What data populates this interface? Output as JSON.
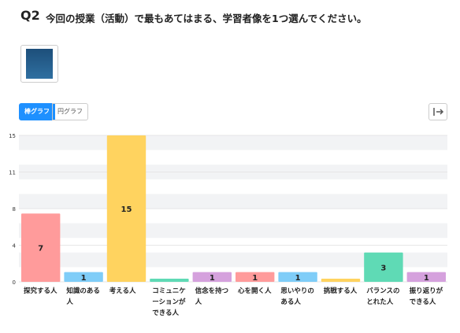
{
  "header": {
    "number": "Q2",
    "question": "今回の授業（活動）で最もあてはまる、学習者像を1つ選んでください。"
  },
  "tabs": [
    "棒グラフ",
    "円グラフ"
  ],
  "chart_data": {
    "type": "bar",
    "categories": [
      "探究する人",
      "知識のある人",
      "考える人",
      "コミュニケーションができる人",
      "信念を持つ人",
      "心を開く人",
      "思いやりのある人",
      "挑戦する人",
      "バランスのとれた人",
      "振り返りができる人"
    ],
    "values": [
      7,
      1,
      15,
      0,
      1,
      1,
      1,
      0,
      3,
      1
    ],
    "colors": [
      "#ff9b9b",
      "#7fcdf8",
      "#ffd35f",
      "#5fdab5",
      "#d5a1dd",
      "#ff9b9b",
      "#7fcdf8",
      "#ffd35f",
      "#5fdab5",
      "#d5a1dd"
    ],
    "ylim": [
      0,
      15
    ],
    "yticks": [
      0,
      {
        "value": 3.75,
        "label": "4"
      },
      {
        "value": 7.5,
        "label": "8"
      },
      {
        "value": 11.25,
        "label": "11"
      },
      15
    ]
  }
}
